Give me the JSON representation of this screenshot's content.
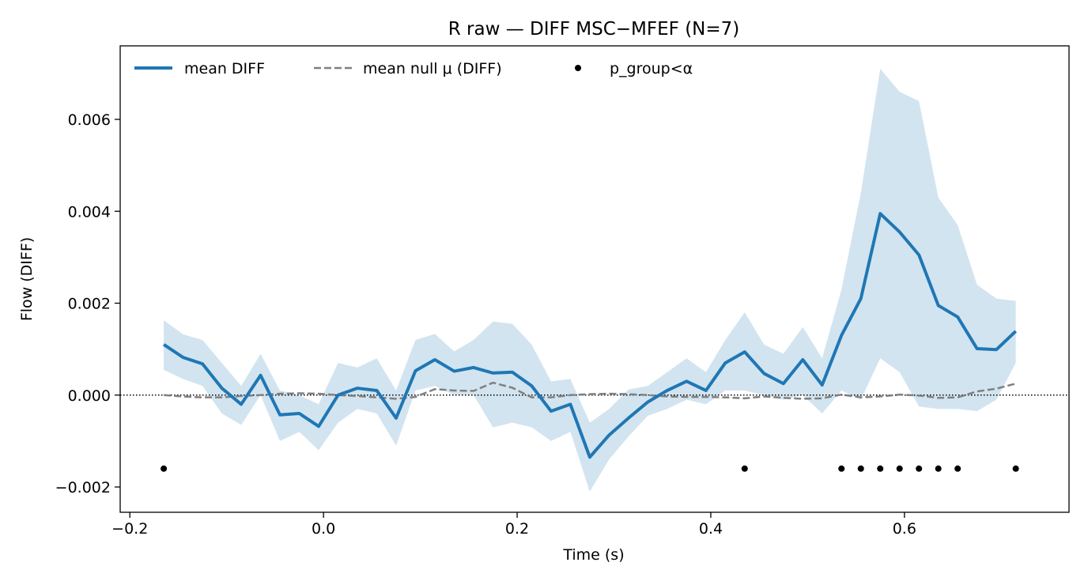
{
  "chart_data": {
    "type": "line",
    "title": "R raw — DIFF MSC−MFEF (N=7)",
    "xlabel": "Time (s)",
    "ylabel": "Flow (DIFF)",
    "xlim": [
      -0.21,
      0.77
    ],
    "ylim": [
      -0.00255,
      0.0076
    ],
    "xticks": [
      -0.2,
      0.0,
      0.2,
      0.4,
      0.6
    ],
    "xtick_labels": [
      "−0.2",
      "0.0",
      "0.2",
      "0.4",
      "0.6"
    ],
    "yticks": [
      -0.002,
      0.0,
      0.002,
      0.004,
      0.006
    ],
    "ytick_labels": [
      "−0.002",
      "0.000",
      "0.002",
      "0.004",
      "0.006"
    ],
    "grid": false,
    "legend_position": "top-left",
    "zero_line": {
      "y": 0,
      "style": "dotted",
      "color": "#000000"
    },
    "x": [
      -0.165,
      -0.145,
      -0.125,
      -0.105,
      -0.085,
      -0.065,
      -0.045,
      -0.025,
      -0.005,
      0.015,
      0.035,
      0.055,
      0.075,
      0.095,
      0.115,
      0.135,
      0.155,
      0.175,
      0.195,
      0.215,
      0.235,
      0.255,
      0.275,
      0.295,
      0.315,
      0.335,
      0.355,
      0.375,
      0.395,
      0.415,
      0.435,
      0.455,
      0.475,
      0.495,
      0.515,
      0.535,
      0.555,
      0.575,
      0.595,
      0.615,
      0.635,
      0.655,
      0.675,
      0.695,
      0.715
    ],
    "series": [
      {
        "name": "mean DIFF",
        "color": "#1f77b4",
        "style": "solid",
        "values": [
          0.0011,
          0.00082,
          0.00068,
          0.00015,
          -0.0002,
          0.00043,
          -0.00043,
          -0.0004,
          -0.00068,
          0.0,
          0.00015,
          0.0001,
          -0.0005,
          0.00053,
          0.00077,
          0.00052,
          0.0006,
          0.00048,
          0.0005,
          0.0002,
          -0.00035,
          -0.0002,
          -0.00135,
          -0.00087,
          -0.0005,
          -0.00015,
          0.0001,
          0.0003,
          0.0001,
          0.0007,
          0.00094,
          0.00047,
          0.00025,
          0.00077,
          0.00022,
          0.0013,
          0.0021,
          0.00395,
          0.00355,
          0.00305,
          0.00195,
          0.0017,
          0.00101,
          0.00099,
          0.00139
        ],
        "ci_lower": [
          0.00055,
          0.00035,
          0.0002,
          -0.0004,
          -0.00065,
          0.0,
          -0.001,
          -0.0008,
          -0.0012,
          -0.0006,
          -0.0003,
          -0.0004,
          -0.0011,
          0.0001,
          0.0002,
          0.0,
          0.0,
          -0.0007,
          -0.0006,
          -0.0007,
          -0.001,
          -0.0008,
          -0.0021,
          -0.0014,
          -0.0009,
          -0.00045,
          -0.0003,
          -0.0001,
          -0.0002,
          0.0001,
          0.0001,
          0.0,
          -0.0001,
          0.0,
          -0.0004,
          0.0001,
          -0.0001,
          0.0008,
          0.0005,
          -0.00025,
          -0.0003,
          -0.0003,
          -0.00035,
          -0.0001,
          0.0007
        ],
        "ci_upper": [
          0.00163,
          0.00132,
          0.0012,
          0.0007,
          0.0002,
          0.0009,
          0.0001,
          0.0,
          -0.0002,
          0.0007,
          0.0006,
          0.0008,
          0.0001,
          0.0012,
          0.00133,
          0.00095,
          0.0012,
          0.0016,
          0.00155,
          0.0011,
          0.0003,
          0.00035,
          -0.0006,
          -0.0003,
          0.00012,
          0.0002,
          0.0005,
          0.0008,
          0.0005,
          0.0012,
          0.0018,
          0.0011,
          0.0009,
          0.00148,
          0.0008,
          0.0023,
          0.0044,
          0.0071,
          0.0066,
          0.0064,
          0.0043,
          0.0037,
          0.0024,
          0.0021,
          0.00205
        ]
      },
      {
        "name": "mean null μ (DIFF)",
        "color": "#808080",
        "style": "dashed",
        "values": [
          0.0,
          -3e-05,
          -5e-05,
          -5e-05,
          -2e-05,
          0.0,
          3e-05,
          4e-05,
          3e-05,
          0.0,
          -2e-05,
          -5e-05,
          -8e-05,
          -4e-05,
          0.00013,
          0.0001,
          9e-05,
          0.00027,
          0.00016,
          -5e-05,
          -5e-05,
          0.0,
          2e-05,
          3e-05,
          2e-05,
          0.0,
          -3e-05,
          -4e-05,
          -4e-05,
          -5e-05,
          -7e-05,
          -3e-05,
          -6e-05,
          -8e-05,
          -7e-05,
          1e-05,
          -5e-05,
          -3e-05,
          1e-05,
          -1e-05,
          -6e-05,
          -5e-05,
          8e-05,
          0.00014,
          0.00025
        ]
      }
    ],
    "significance": {
      "name": "p_group<α",
      "color": "#000000",
      "y": -0.0016,
      "x": [
        -0.165,
        0.435,
        0.535,
        0.555,
        0.575,
        0.595,
        0.615,
        0.635,
        0.655,
        0.715
      ]
    }
  }
}
